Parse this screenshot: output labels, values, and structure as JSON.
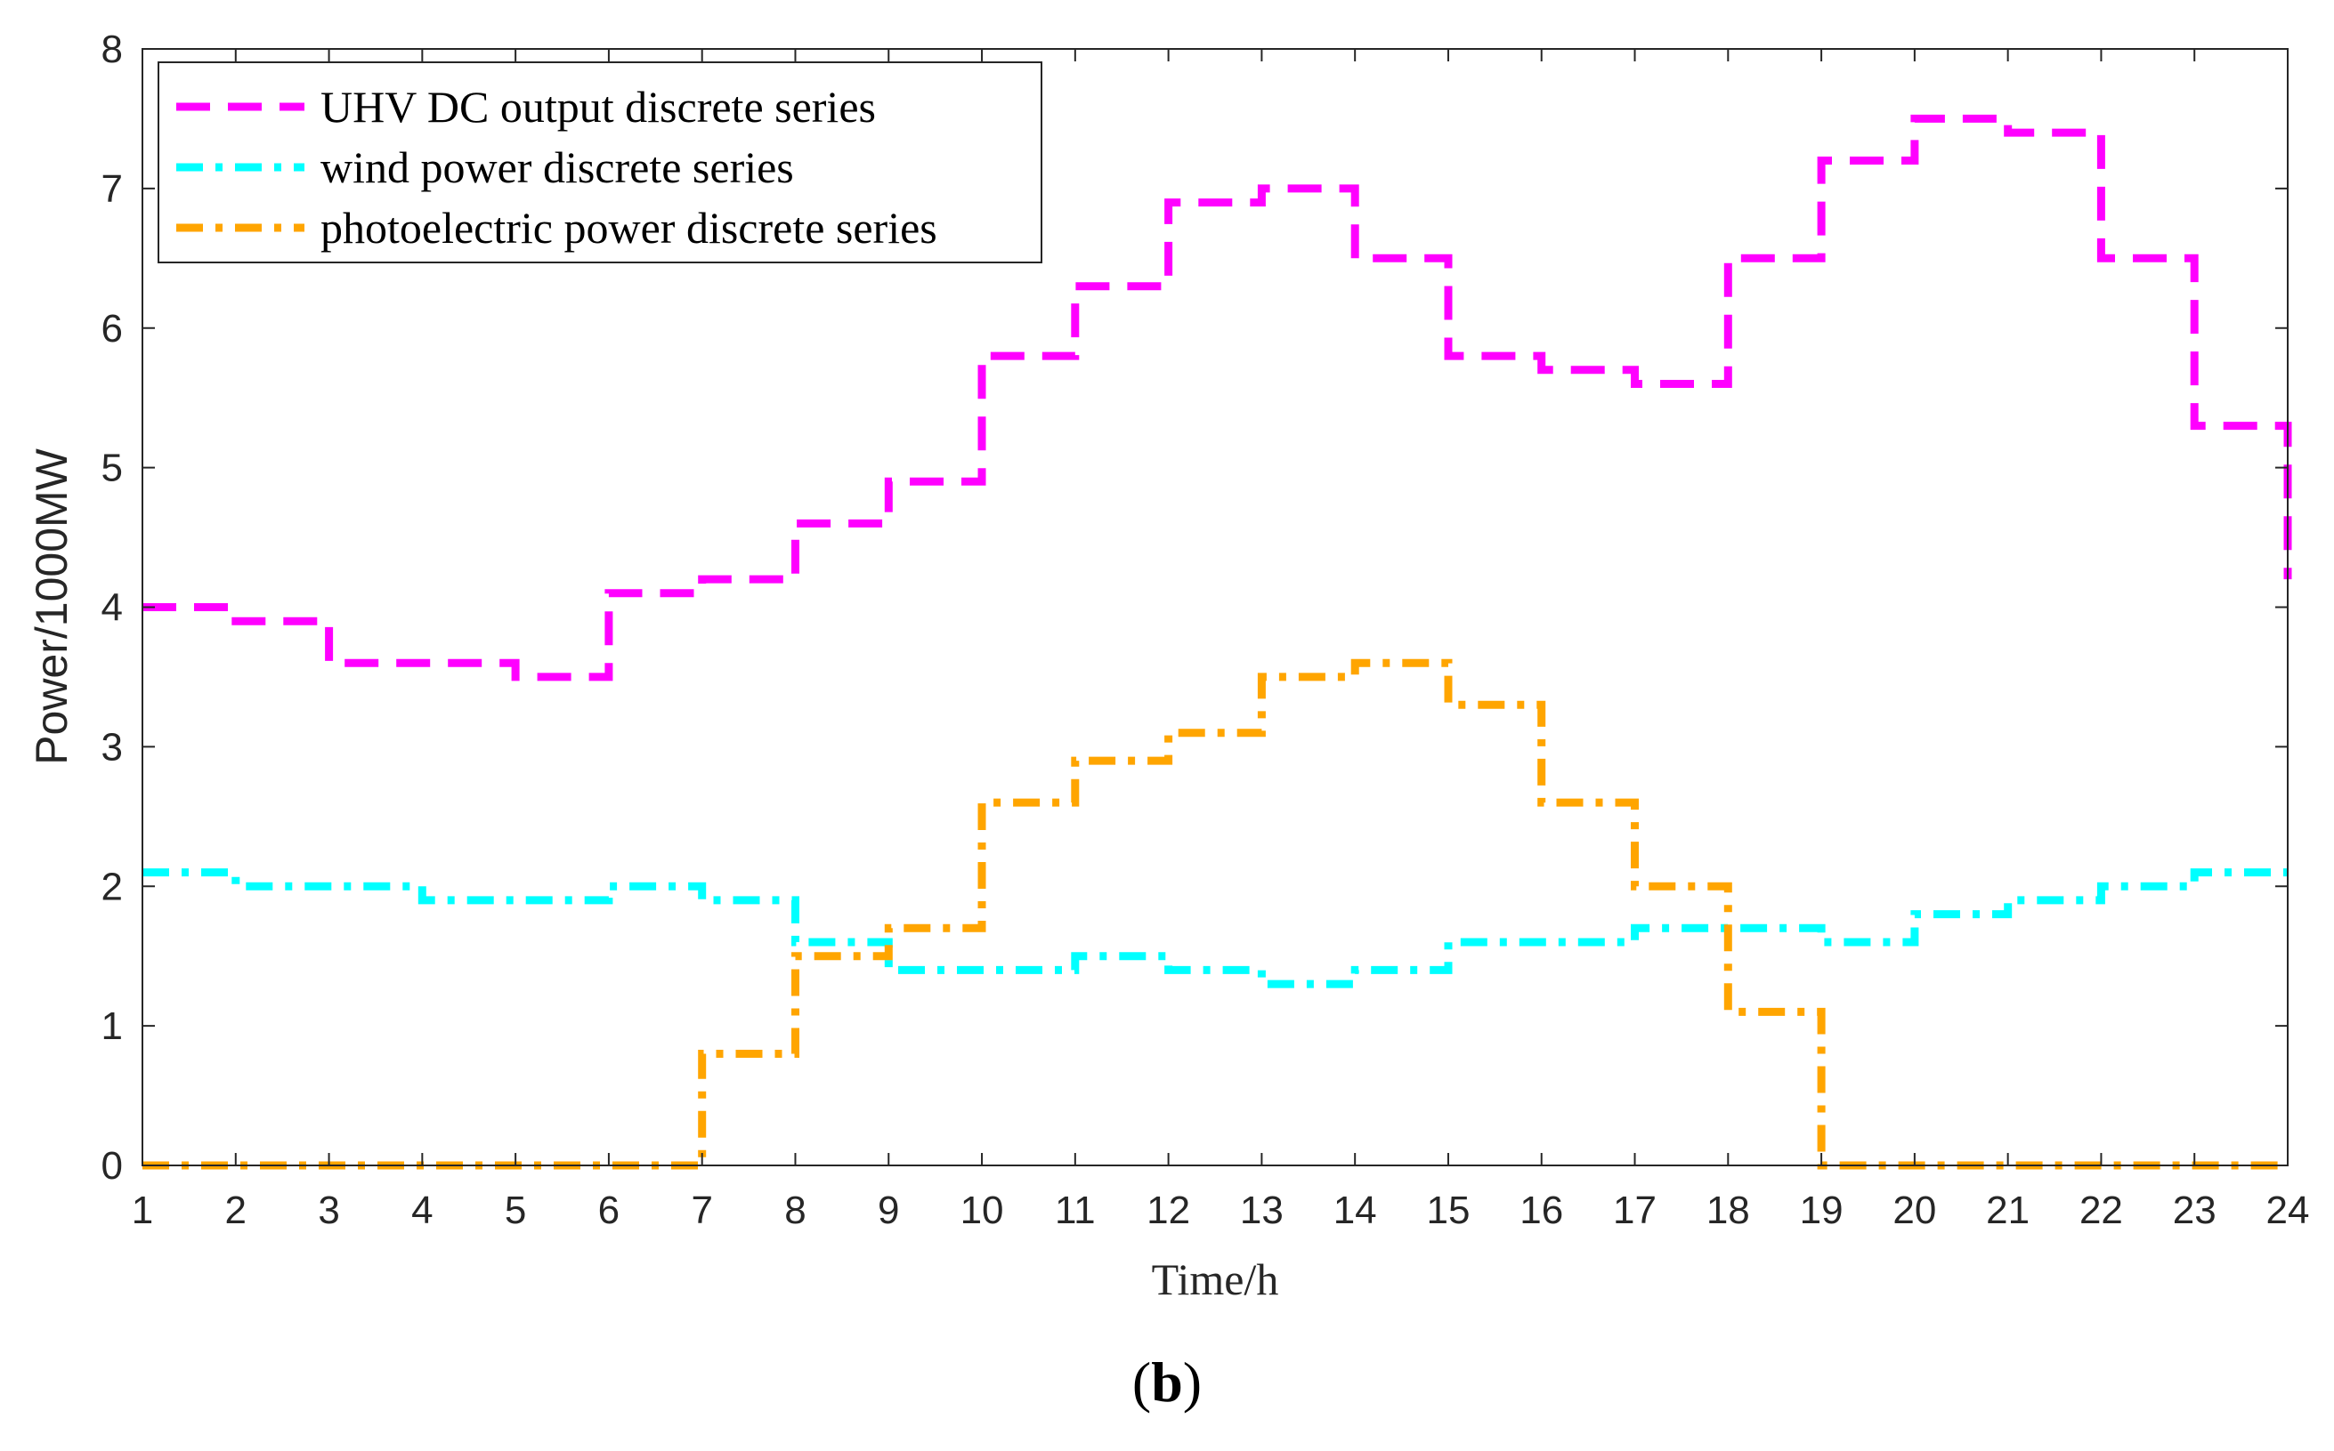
{
  "chart_data": {
    "type": "line",
    "step": true,
    "title": "",
    "xlabel": "Time/h",
    "ylabel": "Power/1000MW",
    "xlim": [
      1,
      24
    ],
    "ylim": [
      0,
      8
    ],
    "xticks": [
      "1",
      "2",
      "3",
      "4",
      "5",
      "6",
      "7",
      "8",
      "9",
      "10",
      "11",
      "12",
      "13",
      "14",
      "15",
      "16",
      "17",
      "18",
      "19",
      "20",
      "21",
      "22",
      "23",
      "24"
    ],
    "yticks": [
      "0",
      "1",
      "2",
      "3",
      "4",
      "5",
      "6",
      "7",
      "8"
    ],
    "grid": false,
    "legend_position": "top-left",
    "series": [
      {
        "name": "UHV DC output discrete series",
        "color": "#ff00ff",
        "style": "dashed",
        "values": [
          4.0,
          3.9,
          3.6,
          3.6,
          3.5,
          4.1,
          4.2,
          4.6,
          4.9,
          5.8,
          6.3,
          6.9,
          7.0,
          6.5,
          5.8,
          5.7,
          5.6,
          6.5,
          7.2,
          7.5,
          7.4,
          6.5,
          5.3,
          4.2
        ]
      },
      {
        "name": "wind power discrete series",
        "color": "#00ffff",
        "style": "dash-dot",
        "values": [
          2.1,
          2.0,
          2.0,
          1.9,
          1.9,
          2.0,
          1.9,
          1.6,
          1.4,
          1.4,
          1.5,
          1.4,
          1.3,
          1.4,
          1.6,
          1.6,
          1.7,
          1.7,
          1.6,
          1.8,
          1.9,
          2.0,
          2.1,
          2.1
        ]
      },
      {
        "name": "photoelectric power discrete series",
        "color": "#ffa500",
        "style": "dash-dot",
        "values": [
          0,
          0,
          0,
          0,
          0,
          0,
          0.8,
          1.5,
          1.7,
          2.6,
          2.9,
          3.1,
          3.5,
          3.6,
          3.3,
          2.6,
          2.0,
          1.1,
          0,
          0,
          0,
          0,
          0,
          0
        ]
      }
    ]
  },
  "caption": {
    "open": "(",
    "letter": "b",
    "close": ")"
  }
}
